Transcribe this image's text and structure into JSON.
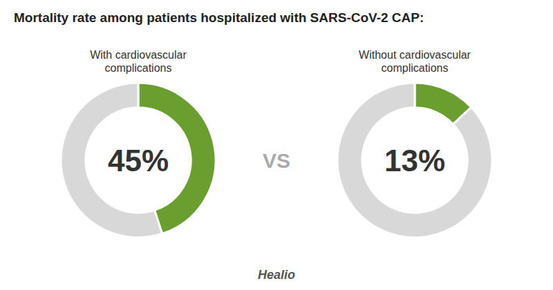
{
  "chart_data": {
    "type": "donut",
    "title": "Mortality rate among patients hospitalized with SARS-CoV-2 CAP:",
    "series": [
      {
        "name": "With cardiovascular\ncomplications",
        "values": [
          45,
          55
        ],
        "value_labels": [
          "45%",
          null
        ]
      },
      {
        "name": "Without cardiovascular\ncomplications",
        "values": [
          13,
          87
        ],
        "value_labels": [
          "13%",
          null
        ]
      }
    ],
    "colors": [
      "#6a9e2e",
      "#d8d8d8"
    ],
    "annotations": [
      "VS",
      "Healio"
    ]
  }
}
